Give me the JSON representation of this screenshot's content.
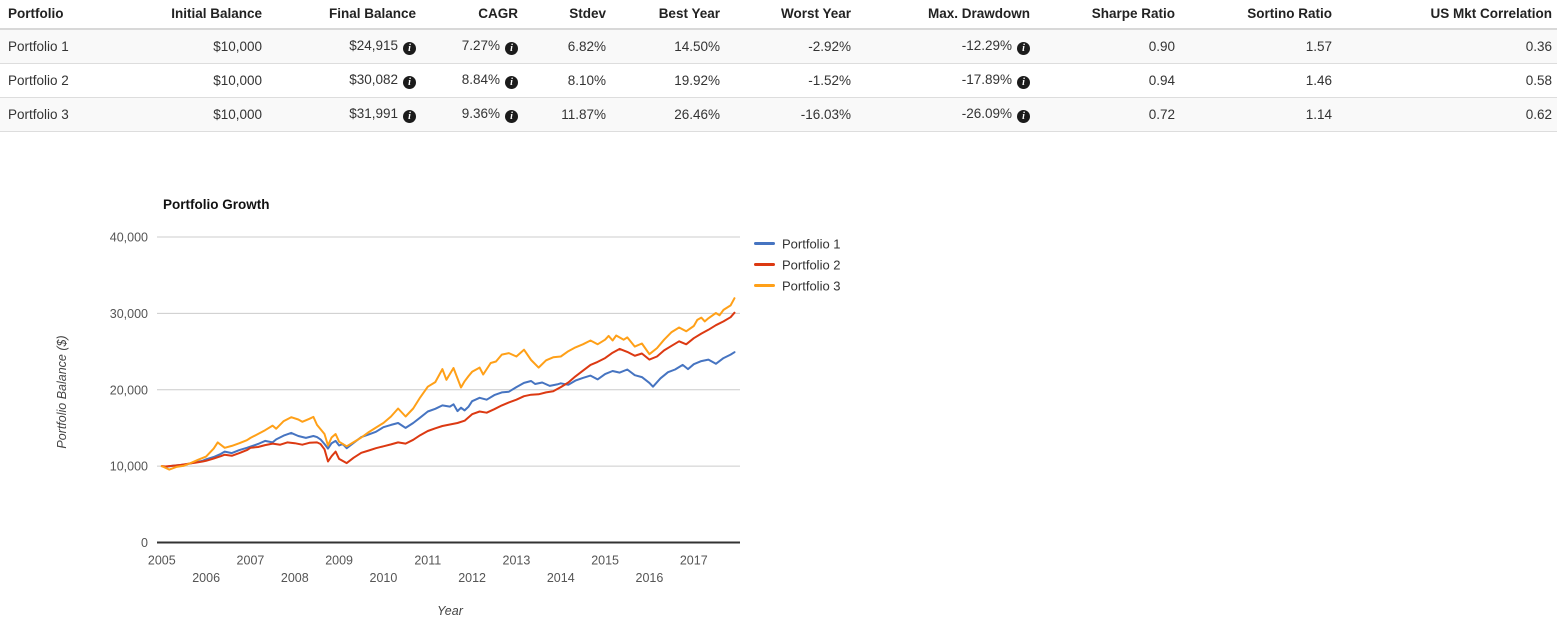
{
  "icons": {
    "info_glyph": "i"
  },
  "table": {
    "columns": [
      "Portfolio",
      "Initial Balance",
      "Final Balance",
      "CAGR",
      "Stdev",
      "Best Year",
      "Worst Year",
      "Max. Drawdown",
      "Sharpe Ratio",
      "Sortino Ratio",
      "US Mkt Correlation"
    ],
    "info_cell_indexes": [
      2,
      3,
      7
    ],
    "rows": [
      {
        "cells": [
          "Portfolio 1",
          "$10,000",
          "$24,915",
          "7.27%",
          "6.82%",
          "14.50%",
          "-2.92%",
          "-12.29%",
          "0.90",
          "1.57",
          "0.36"
        ]
      },
      {
        "cells": [
          "Portfolio 2",
          "$10,000",
          "$30,082",
          "8.84%",
          "8.10%",
          "19.92%",
          "-1.52%",
          "-17.89%",
          "0.94",
          "1.46",
          "0.58"
        ]
      },
      {
        "cells": [
          "Portfolio 3",
          "$10,000",
          "$31,991",
          "9.36%",
          "11.87%",
          "26.46%",
          "-16.03%",
          "-26.09%",
          "0.72",
          "1.14",
          "0.62"
        ]
      }
    ]
  },
  "chart_data": {
    "type": "line",
    "title": "Portfolio Growth",
    "xlabel": "Year",
    "ylabel": "Portfolio Balance ($)",
    "ylim": [
      0,
      40000
    ],
    "y_ticks": [
      0,
      10000,
      20000,
      30000,
      40000
    ],
    "y_tick_labels": [
      "0",
      "10,000",
      "20,000",
      "30,000",
      "40,000"
    ],
    "x_ticks": [
      2005,
      2006,
      2007,
      2008,
      2009,
      2010,
      2011,
      2012,
      2013,
      2014,
      2015,
      2016,
      2017
    ],
    "x_range": [
      2005,
      2018.1
    ],
    "grid": true,
    "legend_position": "right",
    "series": [
      {
        "name": "Portfolio 1",
        "color": "#4674c1",
        "final_value": 24915,
        "points": [
          [
            2005.0,
            10000
          ],
          [
            2005.08,
            9900
          ],
          [
            2005.25,
            10050
          ],
          [
            2005.42,
            10150
          ],
          [
            2005.58,
            10250
          ],
          [
            2005.75,
            10500
          ],
          [
            2005.92,
            10700
          ],
          [
            2006.0,
            10900
          ],
          [
            2006.17,
            11200
          ],
          [
            2006.33,
            11600
          ],
          [
            2006.42,
            11900
          ],
          [
            2006.58,
            11700
          ],
          [
            2006.75,
            12100
          ],
          [
            2006.92,
            12400
          ],
          [
            2007.0,
            12550
          ],
          [
            2007.17,
            12900
          ],
          [
            2007.33,
            13300
          ],
          [
            2007.5,
            13100
          ],
          [
            2007.58,
            13500
          ],
          [
            2007.75,
            14000
          ],
          [
            2007.92,
            14350
          ],
          [
            2008.08,
            13950
          ],
          [
            2008.25,
            13700
          ],
          [
            2008.42,
            13950
          ],
          [
            2008.5,
            13800
          ],
          [
            2008.58,
            13500
          ],
          [
            2008.67,
            12900
          ],
          [
            2008.75,
            12300
          ],
          [
            2008.83,
            13000
          ],
          [
            2008.92,
            13300
          ],
          [
            2009.0,
            12700
          ],
          [
            2009.08,
            12900
          ],
          [
            2009.17,
            12350
          ],
          [
            2009.33,
            13050
          ],
          [
            2009.5,
            13800
          ],
          [
            2009.67,
            14150
          ],
          [
            2009.83,
            14500
          ],
          [
            2010.0,
            15100
          ],
          [
            2010.17,
            15400
          ],
          [
            2010.33,
            15650
          ],
          [
            2010.42,
            15300
          ],
          [
            2010.5,
            15000
          ],
          [
            2010.67,
            15650
          ],
          [
            2010.83,
            16350
          ],
          [
            2011.0,
            17150
          ],
          [
            2011.17,
            17500
          ],
          [
            2011.33,
            17950
          ],
          [
            2011.5,
            17800
          ],
          [
            2011.58,
            18100
          ],
          [
            2011.67,
            17200
          ],
          [
            2011.75,
            17650
          ],
          [
            2011.83,
            17300
          ],
          [
            2011.92,
            17800
          ],
          [
            2012.0,
            18500
          ],
          [
            2012.17,
            18950
          ],
          [
            2012.33,
            18700
          ],
          [
            2012.5,
            19300
          ],
          [
            2012.67,
            19650
          ],
          [
            2012.83,
            19750
          ],
          [
            2013.0,
            20350
          ],
          [
            2013.17,
            20900
          ],
          [
            2013.33,
            21150
          ],
          [
            2013.42,
            20750
          ],
          [
            2013.58,
            20950
          ],
          [
            2013.75,
            20500
          ],
          [
            2013.92,
            20700
          ],
          [
            2014.0,
            20850
          ],
          [
            2014.17,
            20650
          ],
          [
            2014.33,
            21200
          ],
          [
            2014.5,
            21550
          ],
          [
            2014.67,
            21850
          ],
          [
            2014.83,
            21350
          ],
          [
            2015.0,
            22050
          ],
          [
            2015.17,
            22450
          ],
          [
            2015.33,
            22250
          ],
          [
            2015.5,
            22650
          ],
          [
            2015.67,
            21900
          ],
          [
            2015.83,
            21650
          ],
          [
            2016.0,
            20900
          ],
          [
            2016.08,
            20400
          ],
          [
            2016.25,
            21500
          ],
          [
            2016.42,
            22300
          ],
          [
            2016.58,
            22650
          ],
          [
            2016.75,
            23250
          ],
          [
            2016.87,
            22700
          ],
          [
            2017.0,
            23350
          ],
          [
            2017.17,
            23750
          ],
          [
            2017.33,
            23950
          ],
          [
            2017.5,
            23400
          ],
          [
            2017.67,
            24150
          ],
          [
            2017.83,
            24600
          ],
          [
            2017.92,
            24915
          ]
        ]
      },
      {
        "name": "Portfolio 2",
        "color": "#dc3912",
        "final_value": 30082,
        "points": [
          [
            2005.0,
            10000
          ],
          [
            2005.08,
            9950
          ],
          [
            2005.25,
            10050
          ],
          [
            2005.42,
            10150
          ],
          [
            2005.58,
            10300
          ],
          [
            2005.75,
            10450
          ],
          [
            2005.92,
            10600
          ],
          [
            2006.0,
            10700
          ],
          [
            2006.17,
            11000
          ],
          [
            2006.33,
            11300
          ],
          [
            2006.42,
            11500
          ],
          [
            2006.58,
            11350
          ],
          [
            2006.75,
            11700
          ],
          [
            2006.92,
            12100
          ],
          [
            2007.0,
            12400
          ],
          [
            2007.17,
            12500
          ],
          [
            2007.33,
            12750
          ],
          [
            2007.5,
            12950
          ],
          [
            2007.67,
            12800
          ],
          [
            2007.83,
            13100
          ],
          [
            2008.0,
            13000
          ],
          [
            2008.17,
            12800
          ],
          [
            2008.33,
            13050
          ],
          [
            2008.5,
            13100
          ],
          [
            2008.58,
            12900
          ],
          [
            2008.67,
            12200
          ],
          [
            2008.75,
            10600
          ],
          [
            2008.83,
            11300
          ],
          [
            2008.92,
            11900
          ],
          [
            2009.0,
            10950
          ],
          [
            2009.17,
            10400
          ],
          [
            2009.33,
            11100
          ],
          [
            2009.5,
            11750
          ],
          [
            2009.67,
            12050
          ],
          [
            2009.83,
            12350
          ],
          [
            2010.0,
            12600
          ],
          [
            2010.17,
            12850
          ],
          [
            2010.33,
            13100
          ],
          [
            2010.5,
            12950
          ],
          [
            2010.67,
            13450
          ],
          [
            2010.83,
            14050
          ],
          [
            2011.0,
            14600
          ],
          [
            2011.17,
            14950
          ],
          [
            2011.33,
            15250
          ],
          [
            2011.5,
            15450
          ],
          [
            2011.67,
            15650
          ],
          [
            2011.83,
            15950
          ],
          [
            2012.0,
            16800
          ],
          [
            2012.17,
            17150
          ],
          [
            2012.33,
            17000
          ],
          [
            2012.5,
            17450
          ],
          [
            2012.67,
            17950
          ],
          [
            2012.83,
            18350
          ],
          [
            2013.0,
            18700
          ],
          [
            2013.17,
            19150
          ],
          [
            2013.33,
            19350
          ],
          [
            2013.5,
            19400
          ],
          [
            2013.67,
            19650
          ],
          [
            2013.83,
            19800
          ],
          [
            2014.0,
            20350
          ],
          [
            2014.17,
            20950
          ],
          [
            2014.33,
            21750
          ],
          [
            2014.5,
            22500
          ],
          [
            2014.67,
            23250
          ],
          [
            2014.83,
            23650
          ],
          [
            2015.0,
            24150
          ],
          [
            2015.17,
            24850
          ],
          [
            2015.33,
            25350
          ],
          [
            2015.5,
            24950
          ],
          [
            2015.67,
            24450
          ],
          [
            2015.83,
            24750
          ],
          [
            2016.0,
            23950
          ],
          [
            2016.17,
            24350
          ],
          [
            2016.33,
            25150
          ],
          [
            2016.5,
            25750
          ],
          [
            2016.67,
            26350
          ],
          [
            2016.83,
            25950
          ],
          [
            2017.0,
            26750
          ],
          [
            2017.17,
            27350
          ],
          [
            2017.33,
            27850
          ],
          [
            2017.5,
            28450
          ],
          [
            2017.67,
            28950
          ],
          [
            2017.83,
            29500
          ],
          [
            2017.92,
            30082
          ]
        ]
      },
      {
        "name": "Portfolio 3",
        "color": "#ffa018",
        "final_value": 31991,
        "points": [
          [
            2005.0,
            10000
          ],
          [
            2005.08,
            9800
          ],
          [
            2005.17,
            9550
          ],
          [
            2005.33,
            9900
          ],
          [
            2005.5,
            10050
          ],
          [
            2005.67,
            10450
          ],
          [
            2005.83,
            10850
          ],
          [
            2006.0,
            11250
          ],
          [
            2006.17,
            12300
          ],
          [
            2006.26,
            13100
          ],
          [
            2006.42,
            12400
          ],
          [
            2006.58,
            12650
          ],
          [
            2006.75,
            13000
          ],
          [
            2006.92,
            13400
          ],
          [
            2007.0,
            13700
          ],
          [
            2007.17,
            14200
          ],
          [
            2007.33,
            14700
          ],
          [
            2007.5,
            15300
          ],
          [
            2007.58,
            14900
          ],
          [
            2007.75,
            15900
          ],
          [
            2007.92,
            16400
          ],
          [
            2008.08,
            16100
          ],
          [
            2008.17,
            15800
          ],
          [
            2008.33,
            16200
          ],
          [
            2008.42,
            16450
          ],
          [
            2008.5,
            15400
          ],
          [
            2008.67,
            14200
          ],
          [
            2008.75,
            12700
          ],
          [
            2008.83,
            13750
          ],
          [
            2008.92,
            14200
          ],
          [
            2009.0,
            13200
          ],
          [
            2009.17,
            12600
          ],
          [
            2009.33,
            13150
          ],
          [
            2009.5,
            13750
          ],
          [
            2009.67,
            14450
          ],
          [
            2009.83,
            15050
          ],
          [
            2010.0,
            15650
          ],
          [
            2010.17,
            16500
          ],
          [
            2010.33,
            17550
          ],
          [
            2010.5,
            16500
          ],
          [
            2010.67,
            17550
          ],
          [
            2010.83,
            19000
          ],
          [
            2011.0,
            20400
          ],
          [
            2011.17,
            21000
          ],
          [
            2011.33,
            22700
          ],
          [
            2011.42,
            21300
          ],
          [
            2011.58,
            22850
          ],
          [
            2011.75,
            20300
          ],
          [
            2011.83,
            21100
          ],
          [
            2011.92,
            21800
          ],
          [
            2012.0,
            22350
          ],
          [
            2012.17,
            22900
          ],
          [
            2012.25,
            22000
          ],
          [
            2012.42,
            23500
          ],
          [
            2012.54,
            23700
          ],
          [
            2012.67,
            24600
          ],
          [
            2012.83,
            24800
          ],
          [
            2013.0,
            24350
          ],
          [
            2013.17,
            25250
          ],
          [
            2013.33,
            23900
          ],
          [
            2013.5,
            22900
          ],
          [
            2013.67,
            23850
          ],
          [
            2013.83,
            24250
          ],
          [
            2014.0,
            24350
          ],
          [
            2014.17,
            25050
          ],
          [
            2014.33,
            25550
          ],
          [
            2014.5,
            25950
          ],
          [
            2014.67,
            26450
          ],
          [
            2014.83,
            25950
          ],
          [
            2015.0,
            26550
          ],
          [
            2015.08,
            27050
          ],
          [
            2015.17,
            26450
          ],
          [
            2015.25,
            27100
          ],
          [
            2015.42,
            26550
          ],
          [
            2015.5,
            26850
          ],
          [
            2015.67,
            25650
          ],
          [
            2015.83,
            26050
          ],
          [
            2016.0,
            24650
          ],
          [
            2016.17,
            25450
          ],
          [
            2016.33,
            26550
          ],
          [
            2016.5,
            27550
          ],
          [
            2016.67,
            28150
          ],
          [
            2016.83,
            27650
          ],
          [
            2017.0,
            28350
          ],
          [
            2017.08,
            29150
          ],
          [
            2017.17,
            29450
          ],
          [
            2017.25,
            28950
          ],
          [
            2017.33,
            29350
          ],
          [
            2017.5,
            30050
          ],
          [
            2017.58,
            29750
          ],
          [
            2017.67,
            30450
          ],
          [
            2017.83,
            31050
          ],
          [
            2017.92,
            31991
          ]
        ]
      }
    ]
  }
}
